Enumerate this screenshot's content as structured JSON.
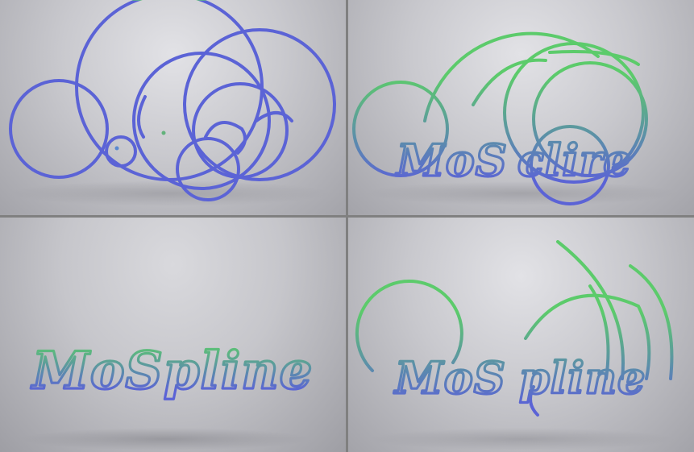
{
  "render": {
    "subject": "MoSpline",
    "colors": {
      "wire_top": "#5ccb6b",
      "wire_bottom": "#5b63d6",
      "background": "#c6c6cb"
    },
    "panels": [
      {
        "state": "circles-only"
      },
      {
        "state": "partial-text"
      },
      {
        "state": "full-text"
      },
      {
        "state": "text-with-tails"
      }
    ]
  }
}
